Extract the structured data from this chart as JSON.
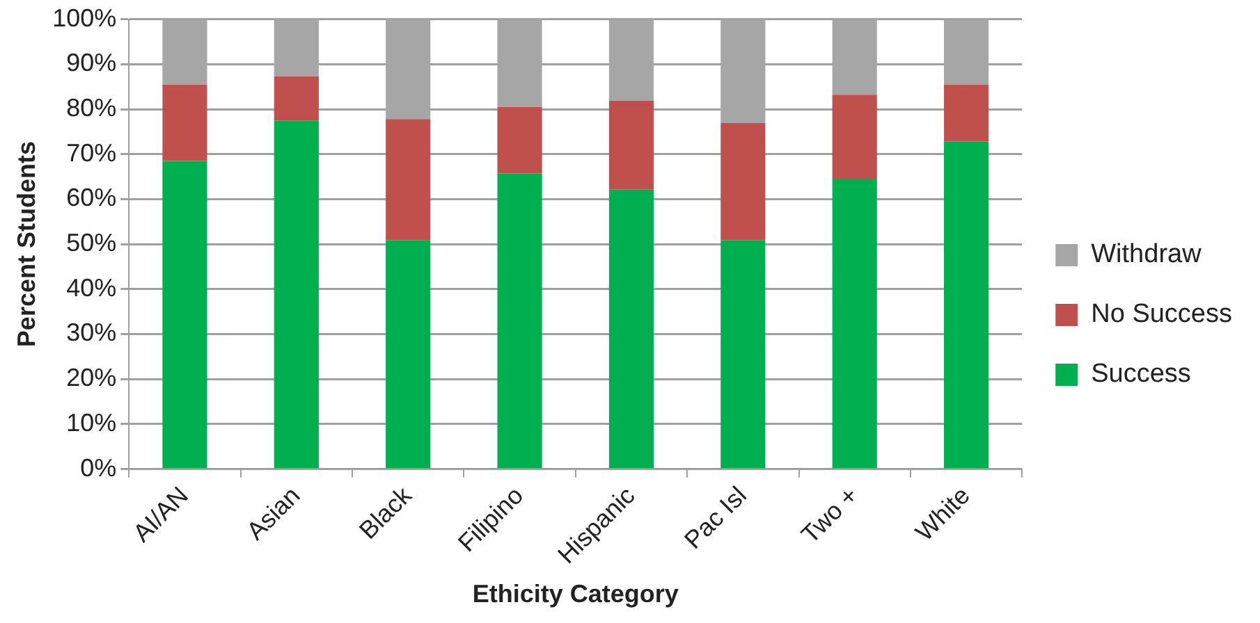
{
  "chart_data": {
    "type": "bar",
    "stacked": true,
    "xlabel": "Ethicity Category",
    "ylabel": "Percent Students",
    "categories": [
      "AI/AN",
      "Asian",
      "Black",
      "Filipino",
      "Hispanic",
      "Pac Isl",
      "Two +",
      "White"
    ],
    "series": [
      {
        "name": "Success",
        "color": "#00b050",
        "values": [
          68.5,
          77.5,
          50.9,
          65.7,
          62.1,
          50.9,
          64.4,
          72.8
        ]
      },
      {
        "name": "No Success",
        "color": "#c0504d",
        "values": [
          16.9,
          9.8,
          26.9,
          14.8,
          19.8,
          26.0,
          18.8,
          12.6
        ]
      },
      {
        "name": "Withdraw",
        "color": "#a6a6a6",
        "values": [
          14.6,
          12.7,
          22.2,
          19.5,
          18.1,
          23.1,
          16.8,
          14.6
        ]
      }
    ],
    "ylim": [
      0,
      100
    ],
    "yticks": [
      {
        "value": 0,
        "label": "0%"
      },
      {
        "value": 10,
        "label": "10%"
      },
      {
        "value": 20,
        "label": "20%"
      },
      {
        "value": 30,
        "label": "30%"
      },
      {
        "value": 40,
        "label": "40%"
      },
      {
        "value": 50,
        "label": "50%"
      },
      {
        "value": 60,
        "label": "60%"
      },
      {
        "value": 70,
        "label": "70%"
      },
      {
        "value": 80,
        "label": "80%"
      },
      {
        "value": 90,
        "label": "90%"
      },
      {
        "value": 100,
        "label": "100%"
      }
    ],
    "grid": "y",
    "legend": "right"
  }
}
